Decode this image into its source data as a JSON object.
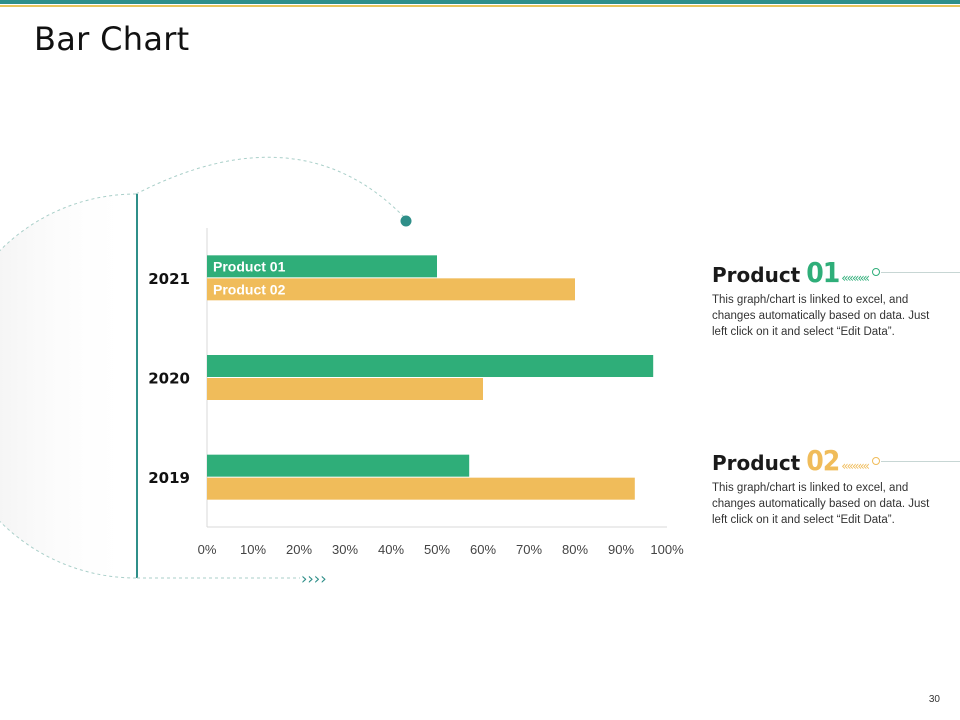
{
  "slide": {
    "title": "Bar Chart",
    "page_number": "30"
  },
  "colors": {
    "product01": "#2fae79",
    "product02": "#f0bc5a",
    "accent_teal": "#2f8f89",
    "accent_gold": "#e8c45a"
  },
  "chart_data": {
    "type": "bar",
    "orientation": "horizontal",
    "categories": [
      "2021",
      "2020",
      "2019"
    ],
    "series": [
      {
        "name": "Product 01",
        "values": [
          50,
          97,
          57
        ]
      },
      {
        "name": "Product 02",
        "values": [
          80,
          60,
          93
        ]
      }
    ],
    "xlim": [
      0,
      100
    ],
    "x_ticks": [
      "0%",
      "10%",
      "20%",
      "30%",
      "40%",
      "50%",
      "60%",
      "70%",
      "80%",
      "90%",
      "100%"
    ],
    "legend": "in-bar labels on 2021 bars",
    "grid": false
  },
  "products": [
    {
      "word": "Product",
      "number": "01",
      "chevrons": "«««««",
      "description": "This graph/chart is linked to excel, and changes automatically based on data. Just left click on it and select “Edit Data”."
    },
    {
      "word": "Product",
      "number": "02",
      "chevrons": "«««««",
      "description": "This graph/chart is linked to excel, and changes automatically based on data. Just left click on it and select “Edit Data”."
    }
  ],
  "decor": {
    "bottom_arrows": "››››"
  }
}
